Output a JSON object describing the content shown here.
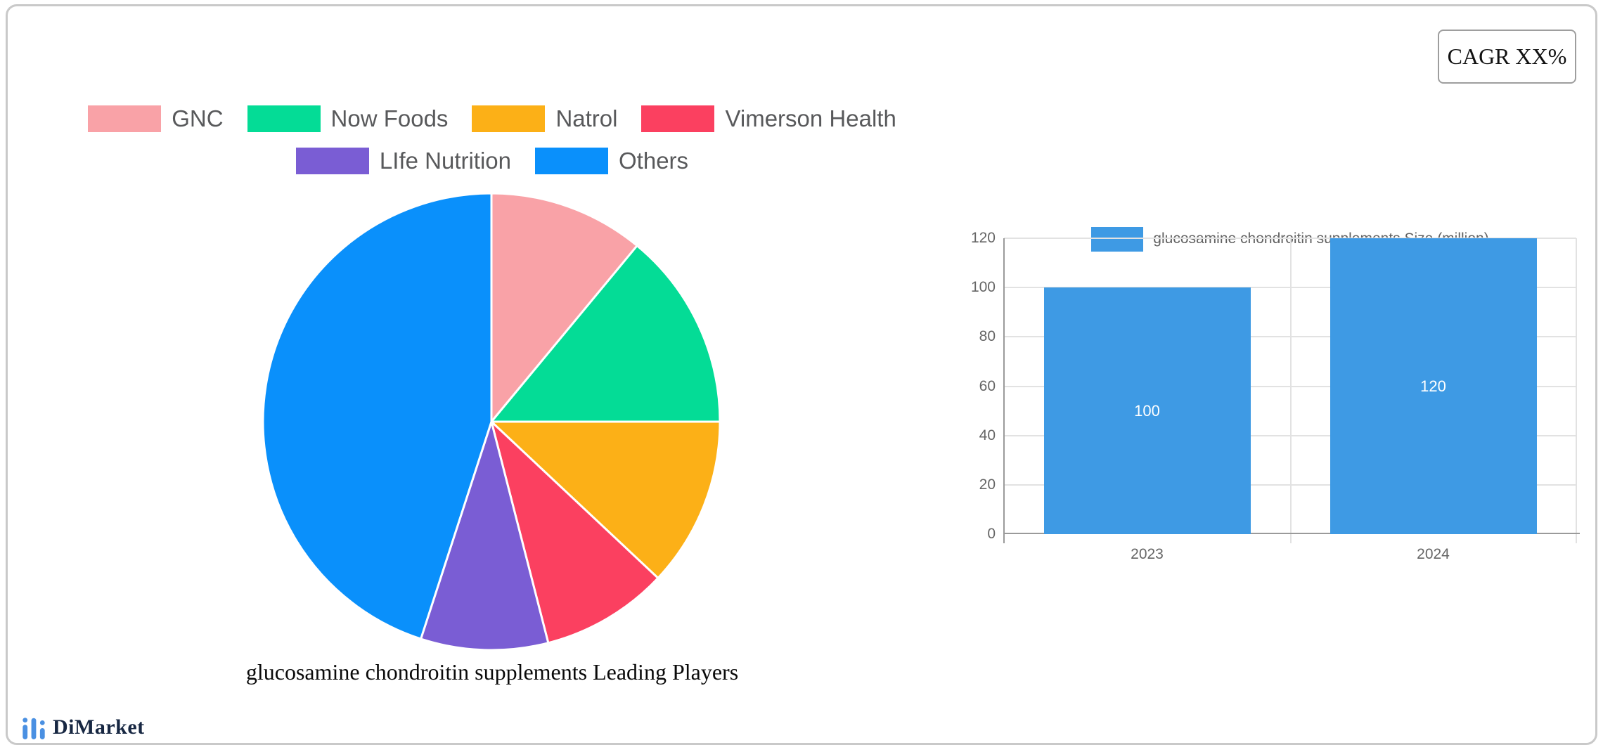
{
  "cagr_box": {
    "label": "CAGR XX%"
  },
  "brand": {
    "name": "DiMarket"
  },
  "colors": {
    "bar_blue": "#3e9ae4",
    "axis_line": "#9a9a9a",
    "gridline": "#e2e2e2",
    "legend_text": "#58595b",
    "muted_text": "#666666",
    "card_border": "#c9c9c9",
    "logo_blue": "#4a90e2",
    "logo_navy": "#172742"
  },
  "chart_data": [
    {
      "type": "pie",
      "title": "glucosamine chondroitin supplements Leading Players",
      "labels": [
        "GNC",
        "Now Foods",
        "Natrol",
        "Vimerson Health",
        "LIfe Nutrition",
        "Others"
      ],
      "values": [
        11,
        14,
        12,
        9,
        9,
        45
      ],
      "colors": [
        "#f9a2a7",
        "#04dc96",
        "#fcb017",
        "#fb4060",
        "#7a5dd4",
        "#0a90fb"
      ],
      "start_angle_deg": 0,
      "direction": "clockwise",
      "legend_position": "top",
      "legend_rows": [
        [
          0,
          1,
          2,
          3
        ],
        [
          4,
          5
        ]
      ]
    },
    {
      "type": "bar",
      "categories": [
        "2023",
        "2024"
      ],
      "series": [
        {
          "name": "glucosamine chondroitin supplements Size (million)",
          "values": [
            100,
            120
          ]
        }
      ],
      "bar_color": "#3e9ae4",
      "value_label_color": "#ffffff",
      "ylim": [
        0,
        120
      ],
      "yticks": [
        0,
        20,
        40,
        60,
        80,
        100,
        120
      ],
      "grid": true,
      "legend_position": "top"
    }
  ]
}
